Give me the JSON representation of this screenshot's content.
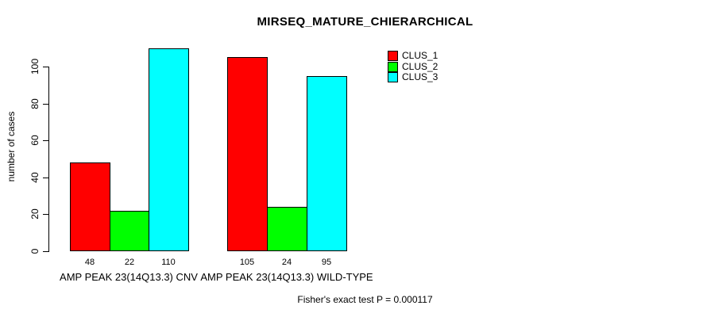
{
  "chart_data": {
    "type": "bar",
    "title": "MIRSEQ_MATURE_CHIERARCHICAL",
    "ylabel": "number of cases",
    "xlabel": "",
    "footer": "Fisher's exact test P = 0.000117",
    "categories": [
      "AMP PEAK 23(14Q13.3) CNV",
      "AMP PEAK 23(14Q13.3) WILD-TYPE"
    ],
    "series": [
      {
        "name": "CLUS_1",
        "color": "#ff0000",
        "values": [
          48,
          105
        ]
      },
      {
        "name": "CLUS_2",
        "color": "#00ff00",
        "values": [
          22,
          24
        ]
      },
      {
        "name": "CLUS_3",
        "color": "#00ffff",
        "values": [
          110,
          95
        ]
      }
    ],
    "bar_value_labels": [
      [
        "48",
        "22",
        "110"
      ],
      [
        "105",
        "24",
        "95"
      ]
    ],
    "yticks": [
      0,
      20,
      40,
      60,
      80,
      100
    ],
    "ylim": [
      0,
      117
    ],
    "grid": false,
    "legend_position": "top-right",
    "bar_border_color": "#000000",
    "background_color": "#ffffff",
    "text_color": "#000000"
  }
}
